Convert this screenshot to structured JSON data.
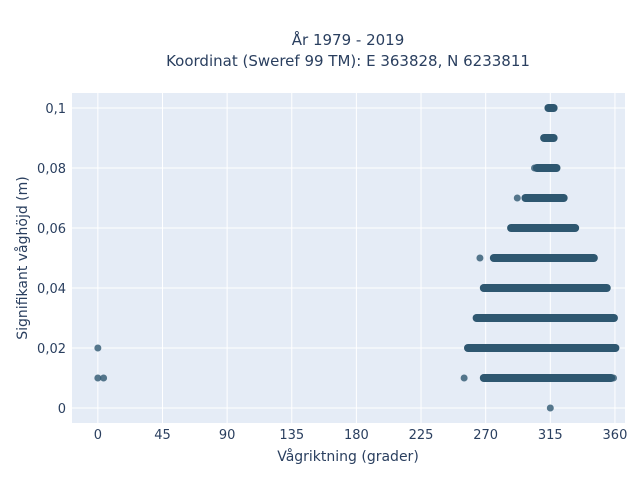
{
  "chart_data": {
    "type": "scatter",
    "title_line1": "År 1979 - 2019",
    "title_line2": "Koordinat (Sweref 99 TM): E 363828, N 6233811",
    "xlabel": "Vågriktning (grader)",
    "ylabel": "Signifikant våghöjd (m)",
    "xlim": [
      -18,
      367
    ],
    "ylim": [
      -0.005,
      0.105
    ],
    "xticks": [
      0,
      45,
      90,
      135,
      180,
      225,
      270,
      315,
      360
    ],
    "xtick_labels": [
      "0",
      "45",
      "90",
      "135",
      "180",
      "225",
      "270",
      "315",
      "360"
    ],
    "yticks": [
      0,
      0.02,
      0.04,
      0.06,
      0.08,
      0.1
    ],
    "ytick_labels": [
      "0",
      "0,02",
      "0,04",
      "0,06",
      "0,08",
      "0,1"
    ],
    "grid": true,
    "colors": {
      "marker": "#2e5770",
      "plot_bg": "#e5ecf6",
      "grid": "#ffffff",
      "text": "#2a3f5f"
    },
    "bands": [
      {
        "y": 0.1,
        "x_min": 313,
        "x_max": 318
      },
      {
        "y": 0.09,
        "x_min": 310,
        "x_max": 318
      },
      {
        "y": 0.08,
        "x_min": 305,
        "x_max": 320
      },
      {
        "y": 0.07,
        "x_min": 297,
        "x_max": 325
      },
      {
        "y": 0.06,
        "x_min": 287,
        "x_max": 333
      },
      {
        "y": 0.05,
        "x_min": 275,
        "x_max": 346
      },
      {
        "y": 0.04,
        "x_min": 268,
        "x_max": 355
      },
      {
        "y": 0.03,
        "x_min": 263,
        "x_max": 360
      },
      {
        "y": 0.02,
        "x_min": 257,
        "x_max": 361
      },
      {
        "y": 0.01,
        "x_min": 268,
        "x_max": 358
      }
    ],
    "points": [
      {
        "x": 0,
        "y": 0.02
      },
      {
        "x": 0,
        "y": 0.01
      },
      {
        "x": 4,
        "y": 0.01
      },
      {
        "x": 255,
        "y": 0.01
      },
      {
        "x": 315,
        "y": 0
      },
      {
        "x": 292,
        "y": 0.07
      },
      {
        "x": 351,
        "y": 0.01
      },
      {
        "x": 359,
        "y": 0.01
      },
      {
        "x": 266,
        "y": 0.05
      },
      {
        "x": 304,
        "y": 0.08
      }
    ]
  }
}
